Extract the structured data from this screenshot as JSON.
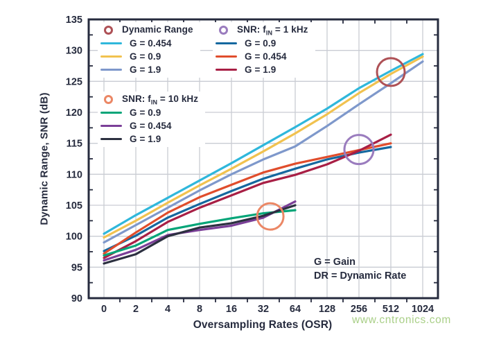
{
  "chart_data": {
    "type": "line",
    "title": "",
    "xlabel": "Oversampling Rates (OSR)",
    "ylabel": "Dynamic Range, SNR (dB)",
    "x_categories": [
      "0",
      "2",
      "4",
      "8",
      "16",
      "32",
      "64",
      "128",
      "256",
      "512",
      "1024"
    ],
    "ylim": [
      90,
      135
    ],
    "ytick_step": 5,
    "grid": true,
    "axis_color": "#262B3E",
    "grid_color": "#C9CCD3",
    "series": [
      {
        "group": "Dynamic Range",
        "name": "G = 0.454",
        "color": "#2FB7DB",
        "values": [
          100.4,
          103.4,
          106.2,
          109.0,
          111.8,
          114.7,
          117.6,
          120.6,
          123.9,
          126.7,
          129.4
        ]
      },
      {
        "group": "Dynamic Range",
        "name": "G = 0.9",
        "color": "#F1C24F",
        "values": [
          99.8,
          102.5,
          105.4,
          108.2,
          110.9,
          113.7,
          116.6,
          119.7,
          123.1,
          126.2,
          129.0
        ]
      },
      {
        "group": "Dynamic Range",
        "name": "G = 1.9",
        "color": "#7E98CB",
        "values": [
          99.0,
          101.8,
          104.6,
          107.4,
          110.0,
          112.4,
          114.5,
          117.8,
          121.3,
          124.7,
          128.2
        ]
      },
      {
        "group": "SNR: fIN = 1 kHz",
        "name": "G = 0.9",
        "color": "#15689F",
        "values": [
          97.6,
          100.1,
          103.0,
          105.2,
          107.3,
          109.3,
          110.9,
          112.4,
          113.5,
          114.4
        ]
      },
      {
        "group": "SNR: fIN = 1 kHz",
        "name": "G = 0.454",
        "color": "#E04D2C",
        "values": [
          97.2,
          100.6,
          103.8,
          106.3,
          108.3,
          110.3,
          111.7,
          112.8,
          113.9,
          115.0
        ]
      },
      {
        "group": "SNR: fIN = 1 kHz",
        "name": "G = 1.9",
        "color": "#A81F45",
        "values": [
          96.5,
          99.2,
          102.3,
          104.6,
          106.6,
          108.6,
          109.9,
          111.6,
          113.8,
          116.4
        ]
      },
      {
        "group": "SNR: fIN = 10 kHz",
        "name": "G = 0.9",
        "color": "#04A578",
        "values": [
          96.9,
          98.5,
          101.0,
          102.0,
          102.9,
          103.7,
          104.2
        ]
      },
      {
        "group": "SNR: fIN = 10 kHz",
        "name": "G = 0.454",
        "color": "#7B3F98",
        "values": [
          96.1,
          97.8,
          100.2,
          101.0,
          101.7,
          103.0,
          105.6
        ]
      },
      {
        "group": "SNR: fIN = 10 kHz",
        "name": "G = 1.9",
        "color": "#2C3040",
        "values": [
          95.6,
          97.1,
          100.0,
          101.4,
          102.1,
          103.3,
          105.0
        ]
      }
    ],
    "legend": {
      "groups": [
        {
          "pre": "Dynamic Range",
          "sub": "",
          "post": "",
          "ring": "#AE5156"
        },
        {
          "pre": "SNR: f",
          "sub": "IN",
          "post": " = 1 kHz",
          "ring": "#9A7CBE"
        },
        {
          "pre": "SNR: f",
          "sub": "IN",
          "post": " = 10 kHz",
          "ring": "#EB8765"
        }
      ]
    },
    "annotations": {
      "circles": [
        {
          "label": "Dynamic Range",
          "color": "#AE5156",
          "tick": 9,
          "db": 126.5,
          "r": 20
        },
        {
          "label": "SNR: fIN = 1 kHz",
          "color": "#9A7CBE",
          "tick": 8,
          "db": 114.0,
          "r": 21
        },
        {
          "label": "SNR: fIN = 10 kHz",
          "color": "#EB8765",
          "tick": 5.22,
          "db": 103.2,
          "r": 19
        }
      ]
    },
    "notes": [
      "G = Gain",
      "DR = Dynamic Rate"
    ],
    "watermark": "www.cntronics.com"
  }
}
